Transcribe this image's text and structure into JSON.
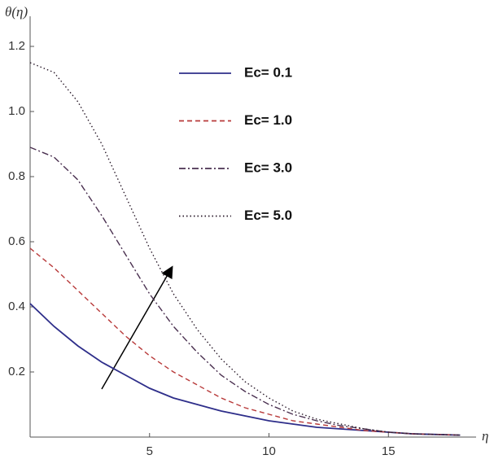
{
  "chart_data": {
    "type": "line",
    "y_label": "θ(η)",
    "x_label": "η",
    "x": [
      0,
      1,
      2,
      3,
      4,
      5,
      6,
      7,
      8,
      9,
      10,
      11,
      12,
      13,
      14,
      15,
      16,
      17,
      18
    ],
    "series": [
      {
        "name": "Ec= 0.1",
        "color": "#2e2e8a",
        "style": "solid",
        "values": [
          0.41,
          0.34,
          0.28,
          0.23,
          0.19,
          0.15,
          0.12,
          0.1,
          0.08,
          0.065,
          0.05,
          0.04,
          0.03,
          0.025,
          0.02,
          0.015,
          0.01,
          0.008,
          0.006
        ]
      },
      {
        "name": "Ec= 1.0",
        "color": "#b83a3a",
        "style": "dashed",
        "values": [
          0.58,
          0.52,
          0.45,
          0.38,
          0.31,
          0.25,
          0.2,
          0.16,
          0.12,
          0.09,
          0.07,
          0.05,
          0.04,
          0.03,
          0.02,
          0.015,
          0.01,
          0.008,
          0.006
        ]
      },
      {
        "name": "Ec= 3.0",
        "color": "#4a3050",
        "style": "dashdot",
        "values": [
          0.89,
          0.86,
          0.79,
          0.68,
          0.56,
          0.44,
          0.34,
          0.26,
          0.19,
          0.14,
          0.1,
          0.07,
          0.05,
          0.035,
          0.025,
          0.015,
          0.01,
          0.008,
          0.006
        ]
      },
      {
        "name": "Ec= 5.0",
        "color": "#2a1a2a",
        "style": "dotted",
        "values": [
          1.15,
          1.12,
          1.03,
          0.9,
          0.74,
          0.58,
          0.44,
          0.33,
          0.24,
          0.17,
          0.12,
          0.08,
          0.055,
          0.04,
          0.025,
          0.015,
          0.01,
          0.008,
          0.006
        ]
      }
    ],
    "xlim": [
      0,
      18.5
    ],
    "ylim": [
      0,
      1.24
    ],
    "xticks": [
      5,
      10,
      15
    ],
    "yticks": [
      0.2,
      0.4,
      0.6,
      0.8,
      {
        "value": 1,
        "label": "1.0"
      },
      1.2
    ],
    "legend": "top-center"
  }
}
